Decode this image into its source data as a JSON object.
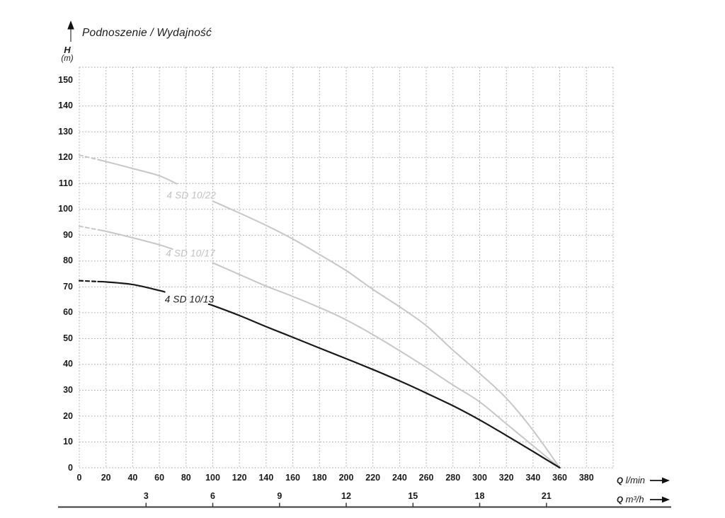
{
  "header": {
    "title": "Podnoszenie / Wydajność"
  },
  "axes": {
    "y": {
      "symbol": "H",
      "unit": "(m)"
    },
    "x_lmin": {
      "symbol": "Q",
      "unit": "l/min"
    },
    "x_m3h": {
      "symbol": "Q",
      "unit": "m³/h"
    }
  },
  "colors": {
    "text": "#1a1a1a",
    "curve_black": "#1a1a1a",
    "curve_gray": "#c7c7c7",
    "label_gray": "#c2c2c2",
    "grid": "#a6a6a6",
    "axis": "#3a3a3a"
  },
  "icons": {
    "up_arrow": "up-arrow-icon",
    "right_arrow_lmin": "right-arrow-icon",
    "right_arrow_m3h": "right-arrow-icon"
  },
  "chart_data": {
    "type": "line",
    "title": "Podnoszenie / Wydajność",
    "ylabel": "H (m)",
    "xlabel_primary": "Q l/min",
    "xlabel_secondary": "Q m³/h",
    "xlim": [
      0,
      400
    ],
    "ylim": [
      0,
      155
    ],
    "grid": true,
    "x_grid_step": 20,
    "y_grid_step": 10,
    "m3h_to_lmin_factor": 16.6667,
    "y_ticks": [
      0,
      10,
      20,
      30,
      40,
      50,
      60,
      70,
      80,
      90,
      100,
      110,
      120,
      130,
      140,
      150
    ],
    "x_ticks_lmin": [
      0,
      20,
      40,
      60,
      80,
      100,
      120,
      140,
      160,
      180,
      200,
      220,
      240,
      260,
      280,
      300,
      320,
      340,
      360,
      380
    ],
    "x_ticks_m3h": [
      3,
      6,
      9,
      12,
      15,
      18,
      21
    ],
    "series": [
      {
        "name": "4 SD 10/22",
        "color": "#c7c7c7",
        "label_color": "#c2c2c2",
        "stroke_width": 2,
        "dash_end_q": 14,
        "label_gap_q": [
          73,
          100
        ],
        "label_at": {
          "q": 84,
          "h": 105.3
        },
        "points": [
          [
            0,
            121
          ],
          [
            20,
            118.5
          ],
          [
            40,
            115.8
          ],
          [
            60,
            113
          ],
          [
            80,
            108.2
          ],
          [
            100,
            103.2
          ],
          [
            120,
            98.6
          ],
          [
            140,
            93.8
          ],
          [
            160,
            88.5
          ],
          [
            180,
            82.5
          ],
          [
            200,
            76.3
          ],
          [
            220,
            69
          ],
          [
            240,
            62.3
          ],
          [
            260,
            55
          ],
          [
            280,
            45.5
          ],
          [
            300,
            36.5
          ],
          [
            320,
            26.9
          ],
          [
            340,
            14.5
          ],
          [
            360,
            0
          ]
        ]
      },
      {
        "name": "4 SD 10/17",
        "color": "#c7c7c7",
        "label_color": "#c2c2c2",
        "stroke_width": 2,
        "dash_end_q": 14,
        "label_gap_q": [
          70,
          100
        ],
        "label_at": {
          "q": 83.3,
          "h": 83
        },
        "points": [
          [
            0,
            93.5
          ],
          [
            20,
            91.5
          ],
          [
            40,
            89
          ],
          [
            60,
            86.3
          ],
          [
            80,
            82.9
          ],
          [
            100,
            79.3
          ],
          [
            120,
            74.8
          ],
          [
            140,
            70.3
          ],
          [
            160,
            66.3
          ],
          [
            180,
            62
          ],
          [
            200,
            57.2
          ],
          [
            220,
            51.5
          ],
          [
            240,
            45.3
          ],
          [
            260,
            38.8
          ],
          [
            280,
            32
          ],
          [
            300,
            25.5
          ],
          [
            320,
            17
          ],
          [
            340,
            8.5
          ],
          [
            360,
            0
          ]
        ]
      },
      {
        "name": "4 SD 10/13",
        "color": "#1a1a1a",
        "label_color": "#1a1a1a",
        "stroke_width": 2.2,
        "dash_end_q": 14,
        "label_gap_q": [
          64,
          97
        ],
        "label_at": {
          "q": 82.5,
          "h": 65.2
        },
        "points": [
          [
            0,
            72.4
          ],
          [
            20,
            71.9
          ],
          [
            40,
            70.9
          ],
          [
            60,
            68.6
          ],
          [
            80,
            65.9
          ],
          [
            100,
            62.8
          ],
          [
            120,
            58.9
          ],
          [
            140,
            54.6
          ],
          [
            160,
            50.5
          ],
          [
            180,
            46.3
          ],
          [
            200,
            42.2
          ],
          [
            220,
            38
          ],
          [
            240,
            33.6
          ],
          [
            260,
            28.9
          ],
          [
            280,
            24
          ],
          [
            300,
            18.5
          ],
          [
            320,
            12.5
          ],
          [
            340,
            6.3
          ],
          [
            360,
            0
          ]
        ]
      }
    ]
  }
}
